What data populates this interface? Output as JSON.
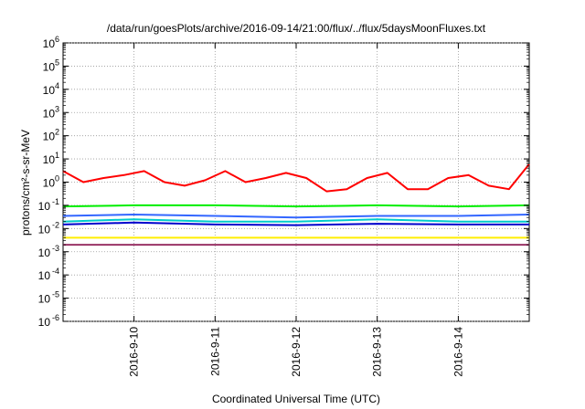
{
  "chart_data": {
    "type": "line",
    "title": "/data/run/goesPlots/archive/2016-09-14/21:00/flux/../flux/5daysMoonFluxes.txt",
    "xlabel": "Coordinated Universal Time (UTC)",
    "ylabel": "protons/cm²-s-sr-MeV",
    "yscale": "log",
    "ylim_exponent": [
      -6,
      6
    ],
    "xlim": [
      "2016-09-09 03:00",
      "2016-09-14 21:00"
    ],
    "x_tick_labels": [
      "2016-9-10",
      "2016-9-11",
      "2016-9-12",
      "2016-9-13",
      "2016-9-14"
    ],
    "x_tick_dates": [
      "2016-09-10",
      "2016-09-11",
      "2016-09-12",
      "2016-09-13",
      "2016-09-14"
    ],
    "y_tick_base": "10",
    "y_tick_exponents": [
      "6",
      "5",
      "4",
      "3",
      "2",
      "1",
      "0",
      "-1",
      "-2",
      "-3",
      "-4",
      "-5",
      "-6"
    ],
    "grid": true,
    "legend": "none",
    "series": [
      {
        "color": "#ff0000",
        "x": [
          "2016-09-09 03:00",
          "2016-09-09 09:00",
          "2016-09-09 15:00",
          "2016-09-09 21:00",
          "2016-09-10 03:00",
          "2016-09-10 09:00",
          "2016-09-10 15:00",
          "2016-09-10 21:00",
          "2016-09-11 03:00",
          "2016-09-11 09:00",
          "2016-09-11 15:00",
          "2016-09-11 21:00",
          "2016-09-12 03:00",
          "2016-09-12 09:00",
          "2016-09-12 15:00",
          "2016-09-12 21:00",
          "2016-09-13 03:00",
          "2016-09-13 09:00",
          "2016-09-13 15:00",
          "2016-09-13 21:00",
          "2016-09-14 03:00",
          "2016-09-14 09:00",
          "2016-09-14 15:00",
          "2016-09-14 21:00"
        ],
        "y": [
          3.0,
          1.0,
          1.5,
          2.0,
          3.0,
          1.0,
          0.7,
          1.2,
          3.0,
          1.0,
          1.5,
          2.5,
          1.5,
          0.4,
          0.5,
          1.5,
          2.5,
          0.5,
          0.5,
          1.5,
          2.0,
          0.7,
          0.5,
          6.0
        ]
      },
      {
        "color": "#00ee00",
        "x": [
          "2016-09-09 03:00",
          "2016-09-10 00:00",
          "2016-09-11 00:00",
          "2016-09-12 00:00",
          "2016-09-13 00:00",
          "2016-09-14 00:00",
          "2016-09-14 21:00"
        ],
        "y": [
          0.09,
          0.1,
          0.1,
          0.09,
          0.1,
          0.09,
          0.1
        ]
      },
      {
        "color": "#00cccc",
        "x": [
          "2016-09-09 03:00",
          "2016-09-10 00:00",
          "2016-09-11 00:00",
          "2016-09-12 00:00",
          "2016-09-13 00:00",
          "2016-09-14 00:00",
          "2016-09-14 21:00"
        ],
        "y": [
          0.02,
          0.025,
          0.02,
          0.02,
          0.025,
          0.02,
          0.02
        ]
      },
      {
        "color": "#3366ff",
        "x": [
          "2016-09-09 03:00",
          "2016-09-10 00:00",
          "2016-09-11 00:00",
          "2016-09-12 00:00",
          "2016-09-13 00:00",
          "2016-09-14 00:00",
          "2016-09-14 21:00"
        ],
        "y": [
          0.035,
          0.04,
          0.035,
          0.03,
          0.035,
          0.035,
          0.04
        ]
      },
      {
        "color": "#0000cc",
        "x": [
          "2016-09-09 03:00",
          "2016-09-10 00:00",
          "2016-09-11 00:00",
          "2016-09-12 00:00",
          "2016-09-13 00:00",
          "2016-09-14 00:00",
          "2016-09-14 21:00"
        ],
        "y": [
          0.015,
          0.018,
          0.015,
          0.014,
          0.016,
          0.015,
          0.015
        ]
      },
      {
        "color": "#ffee00",
        "x": [
          "2016-09-09 03:00",
          "2016-09-10 00:00",
          "2016-09-11 00:00",
          "2016-09-12 00:00",
          "2016-09-13 00:00",
          "2016-09-14 00:00",
          "2016-09-14 21:00"
        ],
        "y": [
          0.004,
          0.004,
          0.004,
          0.004,
          0.004,
          0.004,
          0.004
        ]
      },
      {
        "color": "#993366",
        "x": [
          "2016-09-09 03:00",
          "2016-09-10 00:00",
          "2016-09-11 00:00",
          "2016-09-12 00:00",
          "2016-09-13 00:00",
          "2016-09-14 00:00",
          "2016-09-14 21:00"
        ],
        "y": [
          0.002,
          0.002,
          0.002,
          0.002,
          0.002,
          0.002,
          0.002
        ]
      }
    ]
  }
}
